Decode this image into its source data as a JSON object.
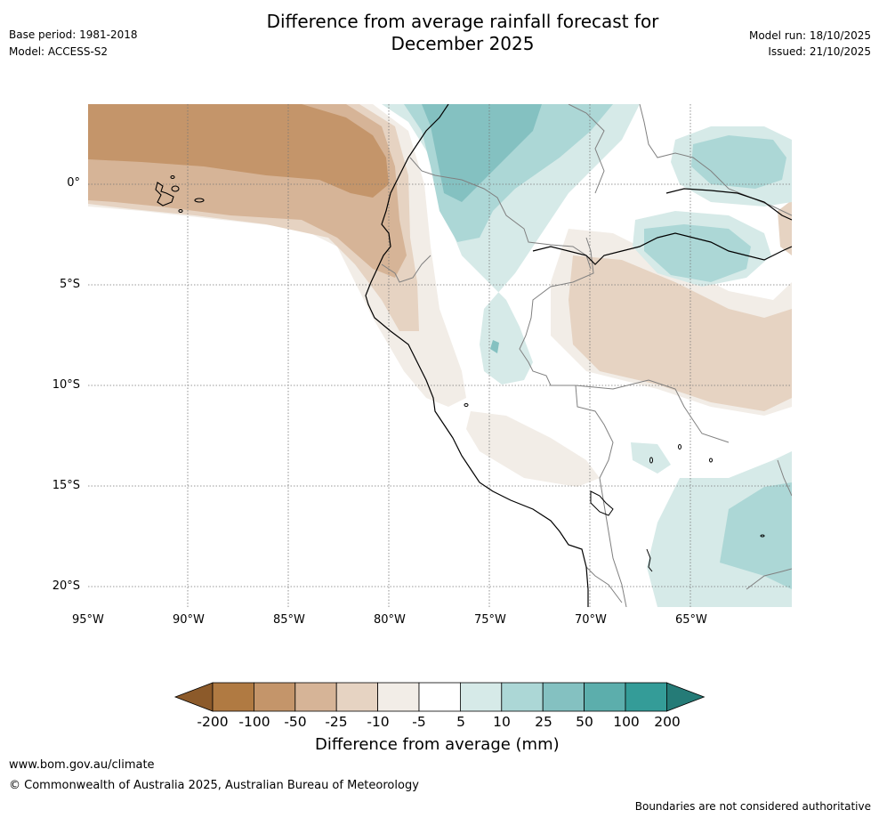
{
  "header": {
    "title_line1": "Difference from average rainfall forecast for",
    "title_line2": "December 2025",
    "base_period": "Base period: 1981-2018",
    "model": "Model: ACCESS-S2",
    "model_run": "Model run: 18/10/2025",
    "issued": "Issued: 21/10/2025"
  },
  "map": {
    "lat_labels": [
      "0°",
      "5°S",
      "10°S",
      "15°S",
      "20°S"
    ],
    "lon_labels": [
      "95°W",
      "90°W",
      "85°W",
      "80°W",
      "75°W",
      "70°W",
      "65°W"
    ],
    "coastline_color": "#000000",
    "border_color": "#808080"
  },
  "colorbar": {
    "title": "Difference from average (mm)",
    "labels": [
      "-200",
      "-100",
      "-50",
      "-25",
      "-10",
      "-5",
      "5",
      "10",
      "25",
      "50",
      "100",
      "200"
    ],
    "colors": [
      "#8c5a2a",
      "#b07a42",
      "#c4956a",
      "#d6b497",
      "#e6d3c2",
      "#f2ede7",
      "#ffffff",
      "#d6eae8",
      "#acd7d6",
      "#84c1c1",
      "#5caeac",
      "#349c98",
      "#257b77"
    ]
  },
  "footer": {
    "website": "www.bom.gov.au/climate",
    "copyright": "© Commonwealth of Australia 2025, Australian Bureau of Meteorology",
    "disclaimer": "Boundaries are not considered authoritative"
  }
}
